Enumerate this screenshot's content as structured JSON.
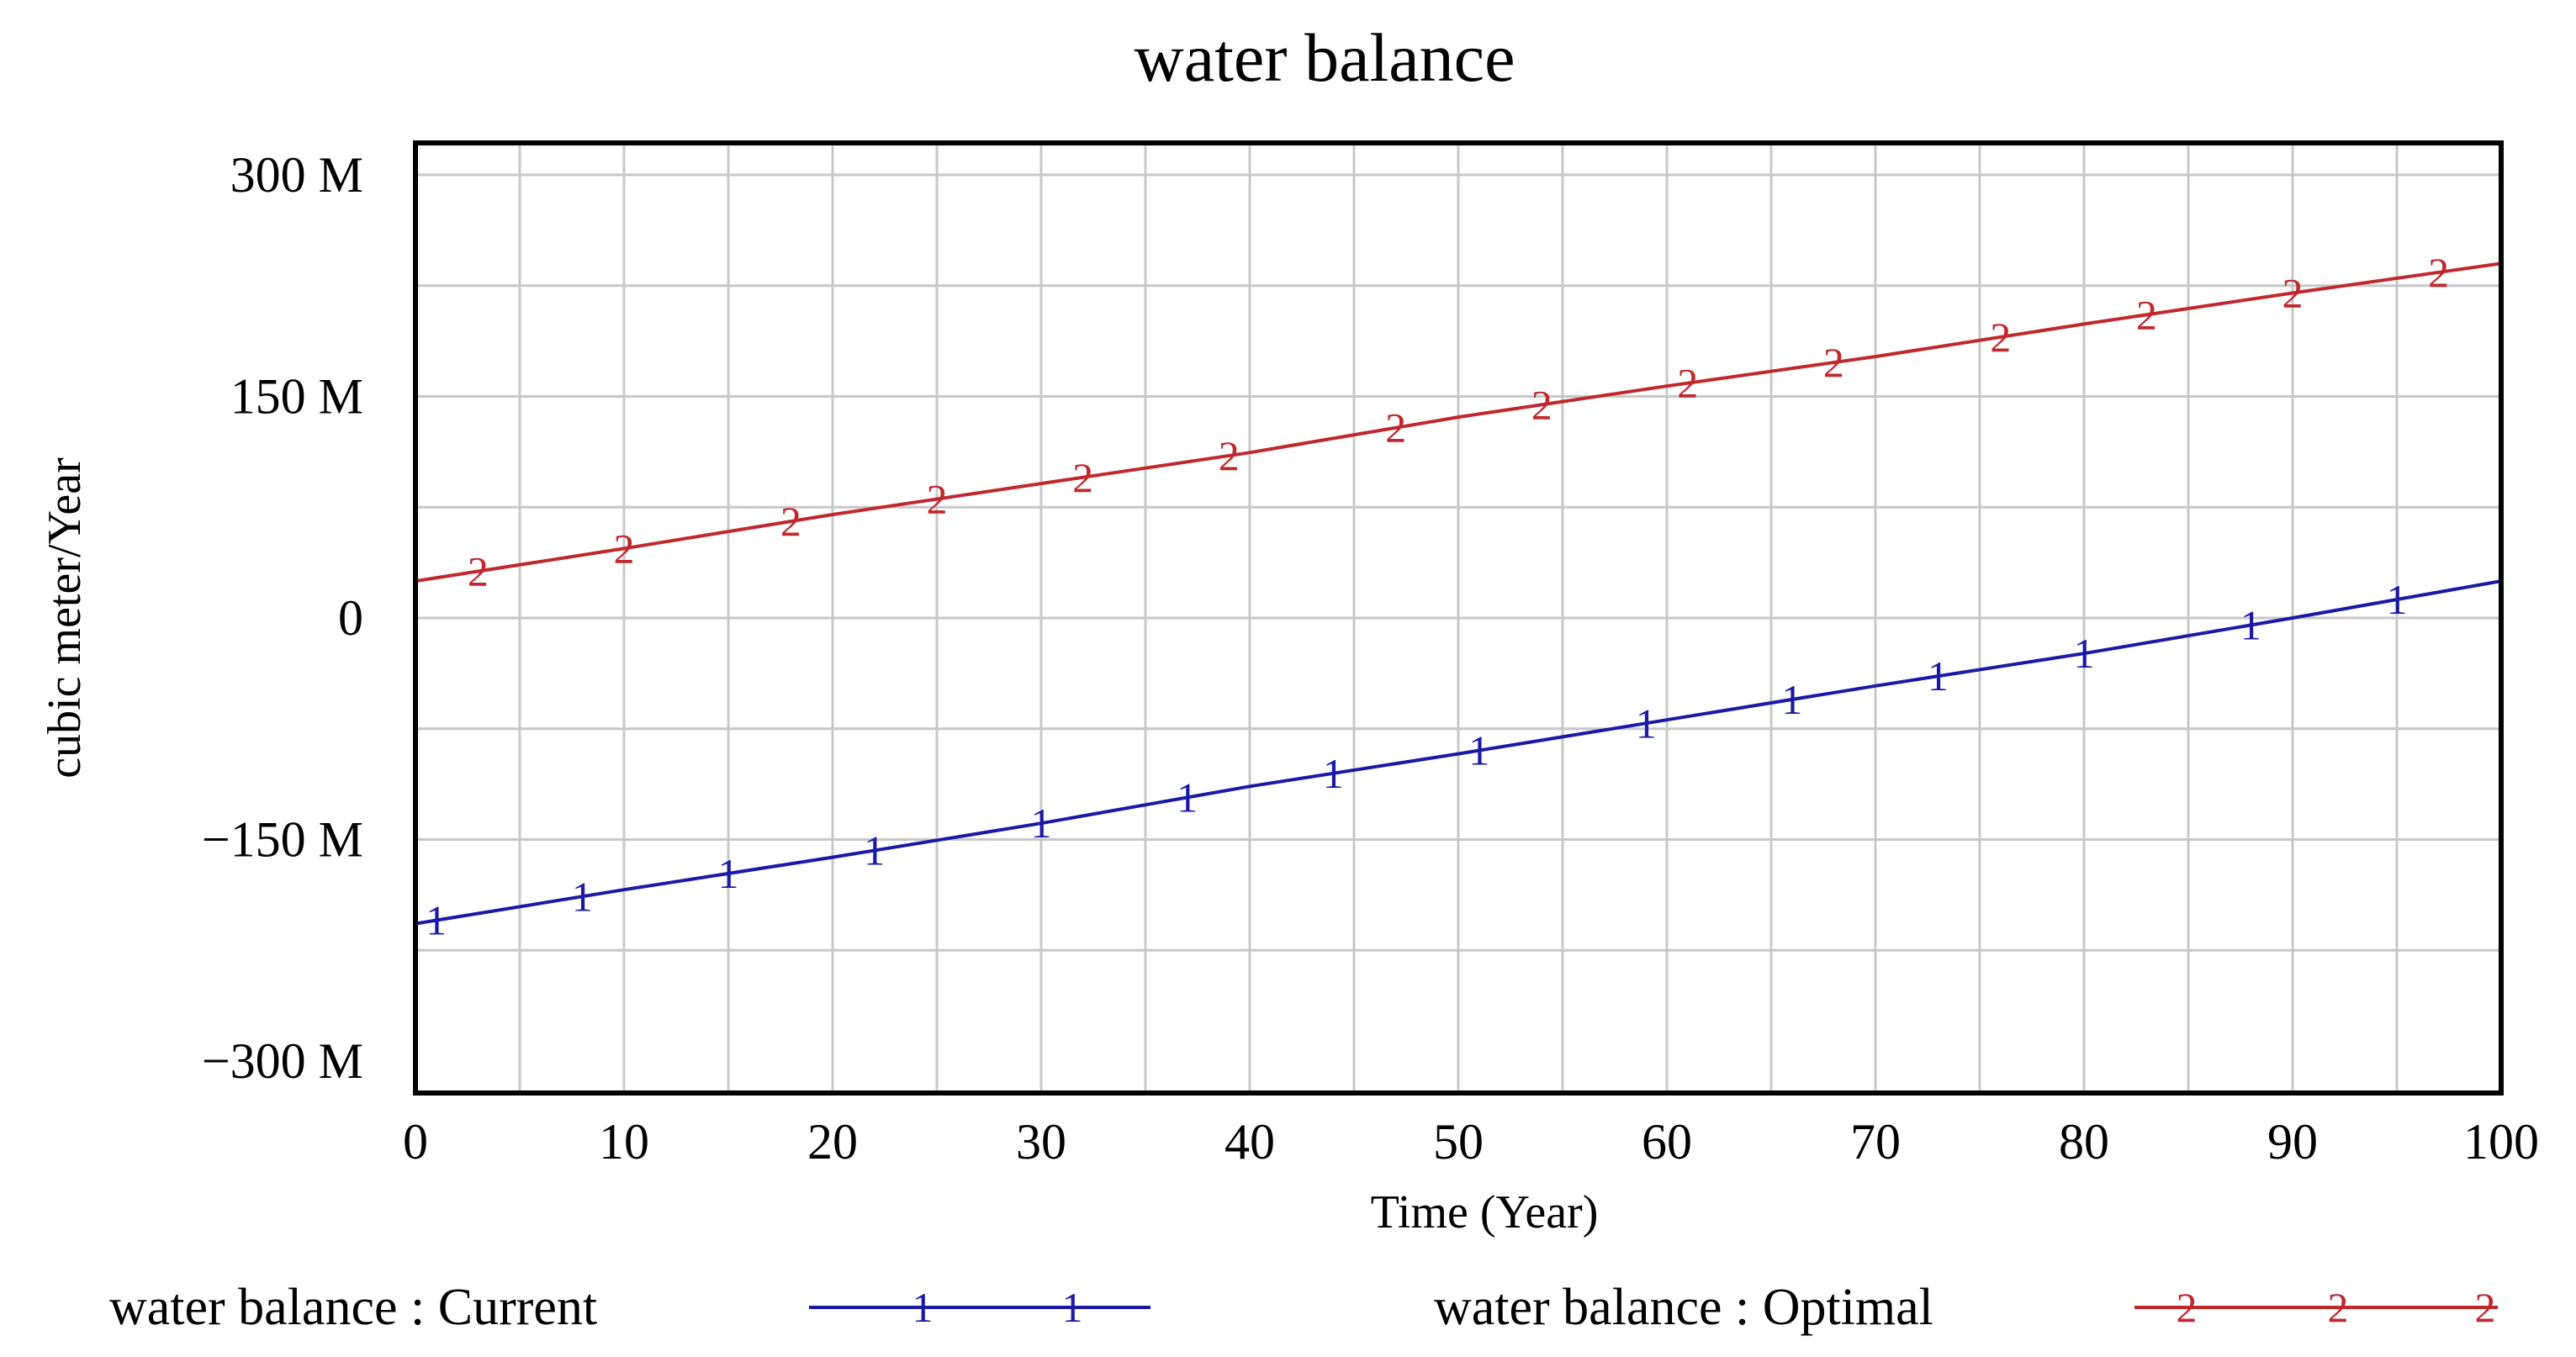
{
  "chart_data": {
    "type": "line",
    "title": "water balance",
    "xlabel": "Time (Year)",
    "ylabel": "cubic meter/Year",
    "xlim": [
      0,
      100
    ],
    "ylim": [
      -300000000,
      300000000
    ],
    "grid": true,
    "x_ticks": [
      0,
      10,
      20,
      30,
      40,
      50,
      60,
      70,
      80,
      90,
      100
    ],
    "x_tick_labels": [
      "0",
      "10",
      "20",
      "30",
      "40",
      "50",
      "60",
      "70",
      "80",
      "90",
      "100"
    ],
    "y_ticks": [
      300000000,
      150000000,
      0,
      -150000000,
      -300000000
    ],
    "y_tick_labels": [
      "300 M",
      "150 M",
      "0",
      "−150 M",
      "−300 M"
    ],
    "legend_position": "bottom",
    "series": [
      {
        "name": "water balance : Current",
        "marker_label": "1",
        "color": "#1a1aa6",
        "x": [
          0,
          10,
          20,
          30,
          40,
          50,
          60,
          70,
          80,
          90,
          100
        ],
        "values": [
          -207000000,
          -184000000,
          -162000000,
          -139000000,
          -114000000,
          -92000000,
          -69000000,
          -46000000,
          -24000000,
          0,
          25000000
        ],
        "markers_x": [
          1,
          8,
          15,
          22,
          30,
          37,
          44,
          51,
          59,
          66,
          73,
          80,
          88,
          95
        ]
      },
      {
        "name": "water balance : Optimal",
        "marker_label": "2",
        "color": "#c0282d",
        "x": [
          0,
          10,
          20,
          30,
          40,
          50,
          60,
          70,
          80,
          90,
          100
        ],
        "values": [
          25000000,
          47000000,
          70000000,
          91000000,
          112000000,
          136000000,
          157000000,
          177000000,
          199000000,
          220000000,
          240000000
        ],
        "markers_x": [
          3,
          10,
          18,
          25,
          32,
          39,
          47,
          54,
          61,
          68,
          76,
          83,
          90,
          97
        ]
      }
    ]
  }
}
